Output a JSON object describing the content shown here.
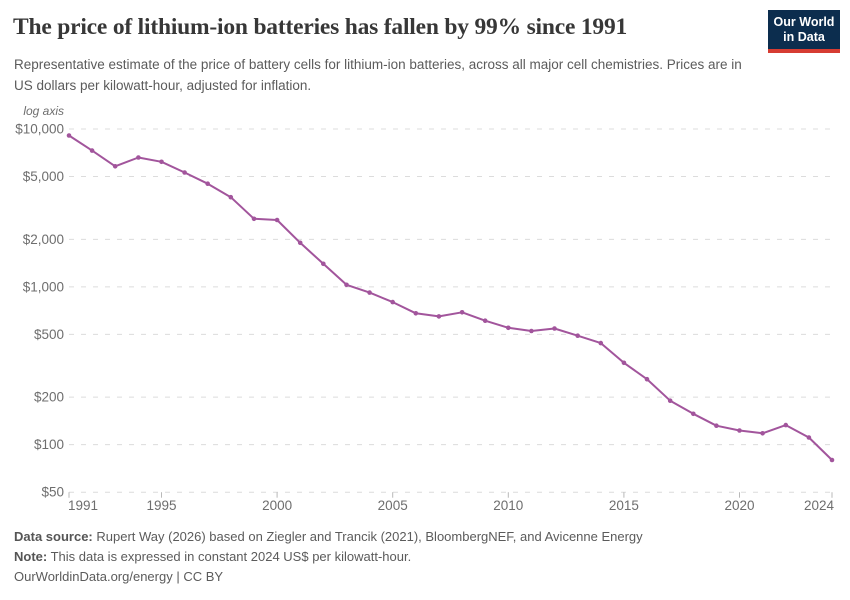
{
  "header": {
    "title": "The price of lithium-ion batteries has fallen by 99% since 1991",
    "subtitle": "Representative estimate of the price of battery cells for lithium-ion batteries, across all major cell chemistries. Prices are in US dollars per kilowatt-hour, adjusted for inflation."
  },
  "logo": {
    "line1": "Our World",
    "line2": "in Data",
    "bg_color": "#0c2d4e",
    "bar_color": "#d63c32"
  },
  "chart_data": {
    "type": "line",
    "yscale": "log",
    "axis_note": "log axis",
    "xlim": [
      1991,
      2024
    ],
    "ylim": [
      50,
      10000
    ],
    "xticks": [
      1991,
      1995,
      2000,
      2005,
      2010,
      2015,
      2020,
      2024
    ],
    "xtick_labels": [
      "1991",
      "1995",
      "2000",
      "2005",
      "2010",
      "2015",
      "2020",
      "2024"
    ],
    "yticks": [
      50,
      100,
      200,
      500,
      1000,
      2000,
      5000,
      10000
    ],
    "ytick_labels": [
      "$50",
      "$100",
      "$200",
      "$500",
      "$1,000",
      "$2,000",
      "$5,000",
      "$10,000"
    ],
    "grid": "horizontal-dashed",
    "legend": "none",
    "line_color": "#a2559c",
    "series": [
      {
        "x": [
          1991,
          1992,
          1993,
          1994,
          1995,
          1996,
          1997,
          1998,
          1999,
          2000,
          2001,
          2002,
          2003,
          2004,
          2005,
          2006,
          2007,
          2008,
          2009,
          2010,
          2011,
          2012,
          2013,
          2014,
          2015,
          2016,
          2017,
          2018,
          2019,
          2020,
          2021,
          2022,
          2023,
          2024
        ],
        "y": [
          9100,
          7300,
          5800,
          6600,
          6200,
          5300,
          4500,
          3700,
          2700,
          2650,
          1900,
          1400,
          1030,
          920,
          800,
          680,
          650,
          690,
          610,
          550,
          525,
          545,
          490,
          440,
          330,
          260,
          190,
          157,
          132,
          123,
          118,
          133,
          111,
          80
        ]
      }
    ]
  },
  "footer": {
    "source_label": "Data source:",
    "source_text": " Rupert Way (2026) based on Ziegler and Trancik (2021), BloombergNEF, and Avicenne Energy",
    "note_label": "Note:",
    "note_text": " This data is expressed in constant 2024 US$ per kilowatt-hour.",
    "link": "OurWorldinData.org/energy | CC BY"
  },
  "colors": {
    "title": "#373737",
    "subtitle": "#5b5b5b",
    "axis_text": "#6e6e6e",
    "gridline": "#dcdcdc",
    "tick": "#b8b8b8",
    "line": "#a2559c"
  }
}
